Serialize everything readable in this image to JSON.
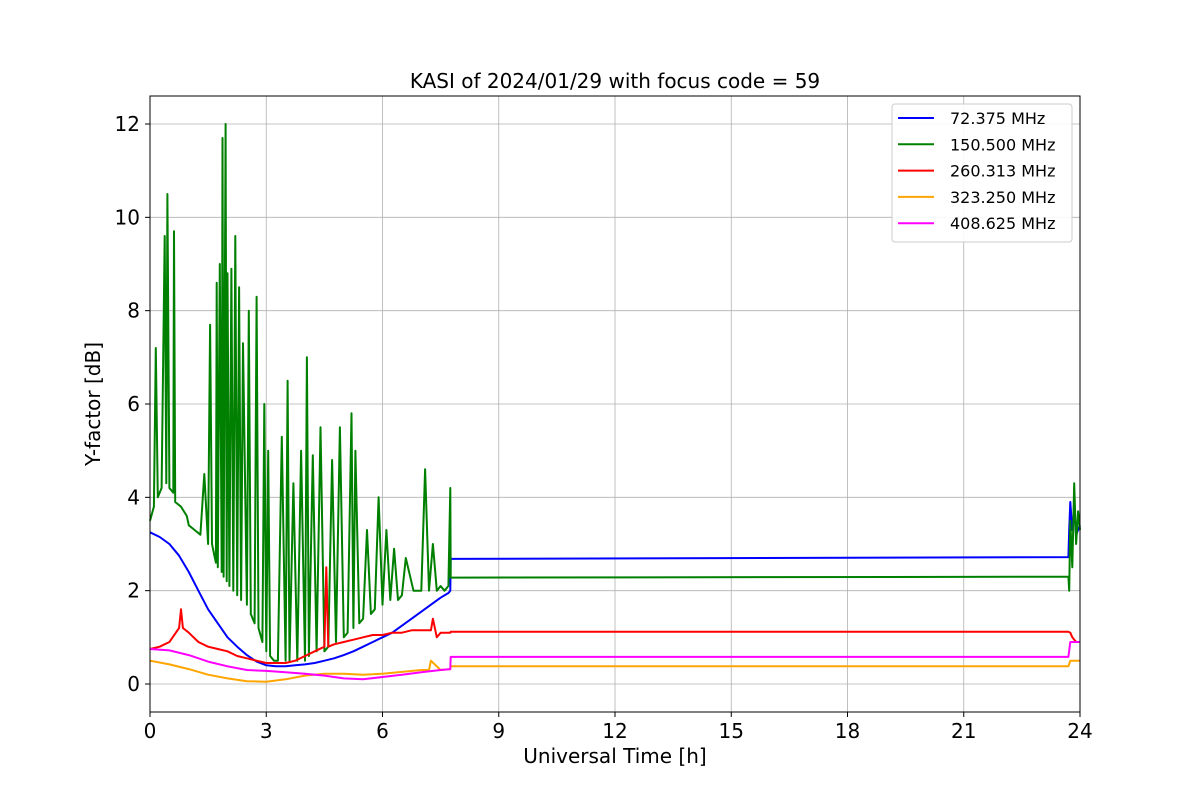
{
  "chart_data": {
    "type": "line",
    "title": "KASI of 2024/01/29 with focus code = 59",
    "xlabel": "Universal Time [h]",
    "ylabel": "Y-factor [dB]",
    "xlim": [
      0,
      24
    ],
    "ylim": [
      -0.6,
      12.6
    ],
    "xticks": [
      0,
      3,
      6,
      9,
      12,
      15,
      18,
      21,
      24
    ],
    "yticks": [
      0,
      2,
      4,
      6,
      8,
      10,
      12
    ],
    "grid": true,
    "legend_position": "top-right",
    "series": [
      {
        "name": "  72.375 MHz",
        "color": "#0000ff",
        "x": [
          0.0,
          0.25,
          0.5,
          0.75,
          1.0,
          1.25,
          1.5,
          1.75,
          2.0,
          2.25,
          2.5,
          2.75,
          3.0,
          3.25,
          3.5,
          3.75,
          4.0,
          4.25,
          4.5,
          4.75,
          5.0,
          5.25,
          5.5,
          5.75,
          6.0,
          6.25,
          6.5,
          6.75,
          7.0,
          7.25,
          7.5,
          7.7,
          7.75,
          7.76,
          23.7,
          23.72,
          23.75,
          23.8,
          23.85,
          23.9,
          24.0
        ],
        "y": [
          3.25,
          3.15,
          3.0,
          2.75,
          2.4,
          2.0,
          1.6,
          1.3,
          1.0,
          0.8,
          0.62,
          0.48,
          0.4,
          0.38,
          0.38,
          0.4,
          0.42,
          0.45,
          0.5,
          0.55,
          0.62,
          0.7,
          0.8,
          0.9,
          1.0,
          1.1,
          1.25,
          1.4,
          1.55,
          1.7,
          1.85,
          1.95,
          2.0,
          2.68,
          2.72,
          3.3,
          3.9,
          3.3,
          3.7,
          3.2,
          3.4
        ]
      },
      {
        "name": "150.500 MHz",
        "color": "#008000",
        "x": [
          0.0,
          0.1,
          0.15,
          0.2,
          0.3,
          0.38,
          0.42,
          0.45,
          0.5,
          0.6,
          0.62,
          0.65,
          0.8,
          0.95,
          1.0,
          1.15,
          1.3,
          1.4,
          1.5,
          1.55,
          1.6,
          1.65,
          1.7,
          1.72,
          1.75,
          1.8,
          1.85,
          1.87,
          1.9,
          1.95,
          1.98,
          2.0,
          2.05,
          2.1,
          2.15,
          2.2,
          2.25,
          2.3,
          2.35,
          2.4,
          2.5,
          2.55,
          2.6,
          2.7,
          2.75,
          2.8,
          2.9,
          2.95,
          3.0,
          3.05,
          3.1,
          3.2,
          3.3,
          3.4,
          3.5,
          3.55,
          3.6,
          3.7,
          3.8,
          3.9,
          4.0,
          4.05,
          4.1,
          4.2,
          4.3,
          4.4,
          4.5,
          4.6,
          4.7,
          4.8,
          4.9,
          5.0,
          5.1,
          5.2,
          5.25,
          5.3,
          5.4,
          5.5,
          5.6,
          5.7,
          5.8,
          5.9,
          6.0,
          6.1,
          6.2,
          6.3,
          6.4,
          6.5,
          6.6,
          6.8,
          7.0,
          7.1,
          7.2,
          7.3,
          7.4,
          7.5,
          7.6,
          7.7,
          7.75,
          7.76,
          23.7,
          23.72,
          23.75,
          23.8,
          23.85,
          23.9,
          23.95,
          24.0
        ],
        "y": [
          3.5,
          3.8,
          7.2,
          4.0,
          4.2,
          9.6,
          4.3,
          10.5,
          4.2,
          4.1,
          9.7,
          3.9,
          3.8,
          3.6,
          3.4,
          3.3,
          3.2,
          4.5,
          3.0,
          7.7,
          3.0,
          2.8,
          2.6,
          8.6,
          2.5,
          9.0,
          2.4,
          11.7,
          2.3,
          12.0,
          2.2,
          8.8,
          2.1,
          8.9,
          2.0,
          9.6,
          1.9,
          8.5,
          1.8,
          7.3,
          1.7,
          8.0,
          1.5,
          1.3,
          8.3,
          1.2,
          0.9,
          6.0,
          0.7,
          5.0,
          0.6,
          0.5,
          0.5,
          5.3,
          0.5,
          6.5,
          0.5,
          4.3,
          0.5,
          5.0,
          0.5,
          7.0,
          0.6,
          4.9,
          0.7,
          5.5,
          0.7,
          0.8,
          4.8,
          0.9,
          5.5,
          1.0,
          1.1,
          5.8,
          1.2,
          5.0,
          1.3,
          1.4,
          3.3,
          1.5,
          1.6,
          4.0,
          1.7,
          3.3,
          1.8,
          2.9,
          1.8,
          1.9,
          2.7,
          2.0,
          2.0,
          4.6,
          2.0,
          3.0,
          2.0,
          2.1,
          2.0,
          2.1,
          4.2,
          2.28,
          2.3,
          2.0,
          3.5,
          2.5,
          4.3,
          3.0,
          3.7,
          3.3
        ]
      },
      {
        "name": "260.313 MHz",
        "color": "#ff0000",
        "x": [
          0.0,
          0.25,
          0.5,
          0.75,
          0.8,
          0.85,
          1.0,
          1.25,
          1.5,
          1.75,
          2.0,
          2.25,
          2.5,
          2.75,
          3.0,
          3.25,
          3.5,
          3.75,
          4.0,
          4.25,
          4.5,
          4.55,
          4.6,
          4.75,
          5.0,
          5.25,
          5.5,
          5.75,
          6.0,
          6.25,
          6.5,
          6.75,
          7.0,
          7.25,
          7.3,
          7.4,
          7.5,
          7.75,
          7.76,
          23.7,
          23.75,
          23.8,
          23.9,
          24.0
        ],
        "y": [
          0.75,
          0.8,
          0.9,
          1.2,
          1.6,
          1.2,
          1.1,
          0.9,
          0.8,
          0.75,
          0.7,
          0.6,
          0.55,
          0.5,
          0.45,
          0.45,
          0.45,
          0.5,
          0.6,
          0.7,
          0.8,
          2.5,
          0.8,
          0.85,
          0.9,
          0.95,
          1.0,
          1.05,
          1.05,
          1.1,
          1.1,
          1.15,
          1.15,
          1.15,
          1.4,
          1.0,
          1.1,
          1.1,
          1.12,
          1.12,
          1.1,
          1.0,
          0.9,
          0.9
        ]
      },
      {
        "name": "323.250 MHz",
        "color": "#ffa500",
        "x": [
          0.0,
          0.5,
          1.0,
          1.5,
          2.0,
          2.5,
          3.0,
          3.5,
          4.0,
          4.5,
          5.0,
          5.5,
          6.0,
          6.5,
          7.0,
          7.2,
          7.25,
          7.5,
          7.75,
          7.76,
          23.7,
          23.75,
          24.0
        ],
        "y": [
          0.5,
          0.42,
          0.32,
          0.2,
          0.12,
          0.06,
          0.05,
          0.1,
          0.18,
          0.22,
          0.22,
          0.2,
          0.22,
          0.26,
          0.3,
          0.3,
          0.5,
          0.3,
          0.32,
          0.38,
          0.38,
          0.5,
          0.5
        ]
      },
      {
        "name": "408.625 MHz",
        "color": "#ff00ff",
        "x": [
          0.0,
          0.5,
          1.0,
          1.5,
          2.0,
          2.5,
          3.0,
          3.5,
          4.0,
          4.5,
          5.0,
          5.5,
          6.0,
          6.5,
          7.0,
          7.5,
          7.75,
          7.76,
          23.7,
          23.75,
          24.0
        ],
        "y": [
          0.75,
          0.72,
          0.62,
          0.48,
          0.38,
          0.3,
          0.28,
          0.25,
          0.22,
          0.18,
          0.12,
          0.1,
          0.15,
          0.2,
          0.25,
          0.3,
          0.32,
          0.58,
          0.58,
          0.9,
          0.9
        ]
      }
    ]
  }
}
